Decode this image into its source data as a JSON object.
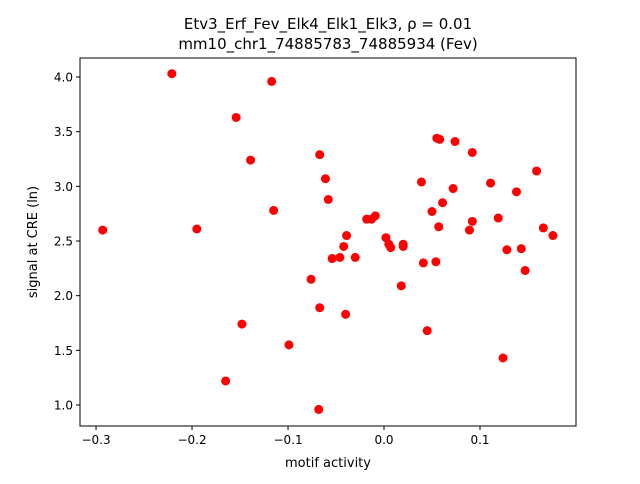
{
  "chart_data": {
    "type": "scatter",
    "title_line1": "Etv3_Erf_Fev_Elk4_Elk1_Elk3, ρ = 0.01",
    "title_line2": "mm10_chr1_74885783_74885934 (Fev)",
    "xlabel": "motif activity",
    "ylabel": "signal at CRE (ln)",
    "xlim": [
      -0.3167,
      0.2
    ],
    "ylim": [
      0.808,
      4.174
    ],
    "xticks": [
      -0.3,
      -0.2,
      -0.1,
      0.0,
      0.1
    ],
    "xtick_labels": [
      "−0.3",
      "−0.2",
      "−0.1",
      "0.0",
      "0.1"
    ],
    "yticks": [
      1.0,
      1.5,
      2.0,
      2.5,
      3.0,
      3.5,
      4.0
    ],
    "ytick_labels": [
      "1.0",
      "1.5",
      "2.0",
      "2.5",
      "3.0",
      "3.5",
      "4.0"
    ],
    "grid": false,
    "marker_color": "#ff0000",
    "points": [
      [
        -0.293,
        2.6
      ],
      [
        -0.221,
        4.03
      ],
      [
        -0.195,
        2.61
      ],
      [
        -0.154,
        3.63
      ],
      [
        -0.139,
        3.24
      ],
      [
        -0.117,
        3.96
      ],
      [
        -0.115,
        2.78
      ],
      [
        -0.148,
        1.74
      ],
      [
        -0.165,
        1.22
      ],
      [
        -0.099,
        1.55
      ],
      [
        -0.067,
        3.29
      ],
      [
        -0.061,
        3.07
      ],
      [
        -0.058,
        2.88
      ],
      [
        -0.076,
        2.15
      ],
      [
        -0.067,
        1.89
      ],
      [
        -0.068,
        0.96
      ],
      [
        -0.04,
        1.83
      ],
      [
        -0.039,
        2.55
      ],
      [
        -0.042,
        2.45
      ],
      [
        -0.046,
        2.35
      ],
      [
        -0.054,
        2.34
      ],
      [
        -0.03,
        2.35
      ],
      [
        -0.018,
        2.7
      ],
      [
        -0.013,
        2.7
      ],
      [
        -0.009,
        2.73
      ],
      [
        0.002,
        2.53
      ],
      [
        0.005,
        2.47
      ],
      [
        0.007,
        2.44
      ],
      [
        0.02,
        2.47
      ],
      [
        0.02,
        2.45
      ],
      [
        0.018,
        2.09
      ],
      [
        0.041,
        2.3
      ],
      [
        0.039,
        3.04
      ],
      [
        0.045,
        1.68
      ],
      [
        0.05,
        2.77
      ],
      [
        0.054,
        2.31
      ],
      [
        0.055,
        3.44
      ],
      [
        0.058,
        3.43
      ],
      [
        0.057,
        2.63
      ],
      [
        0.061,
        2.85
      ],
      [
        0.072,
        2.98
      ],
      [
        0.074,
        3.41
      ],
      [
        0.089,
        2.6
      ],
      [
        0.092,
        3.31
      ],
      [
        0.092,
        2.68
      ],
      [
        0.111,
        3.03
      ],
      [
        0.119,
        2.71
      ],
      [
        0.124,
        1.43
      ],
      [
        0.128,
        2.42
      ],
      [
        0.138,
        2.95
      ],
      [
        0.143,
        2.43
      ],
      [
        0.147,
        2.23
      ],
      [
        0.159,
        3.14
      ],
      [
        0.166,
        2.62
      ],
      [
        0.176,
        2.55
      ]
    ]
  }
}
